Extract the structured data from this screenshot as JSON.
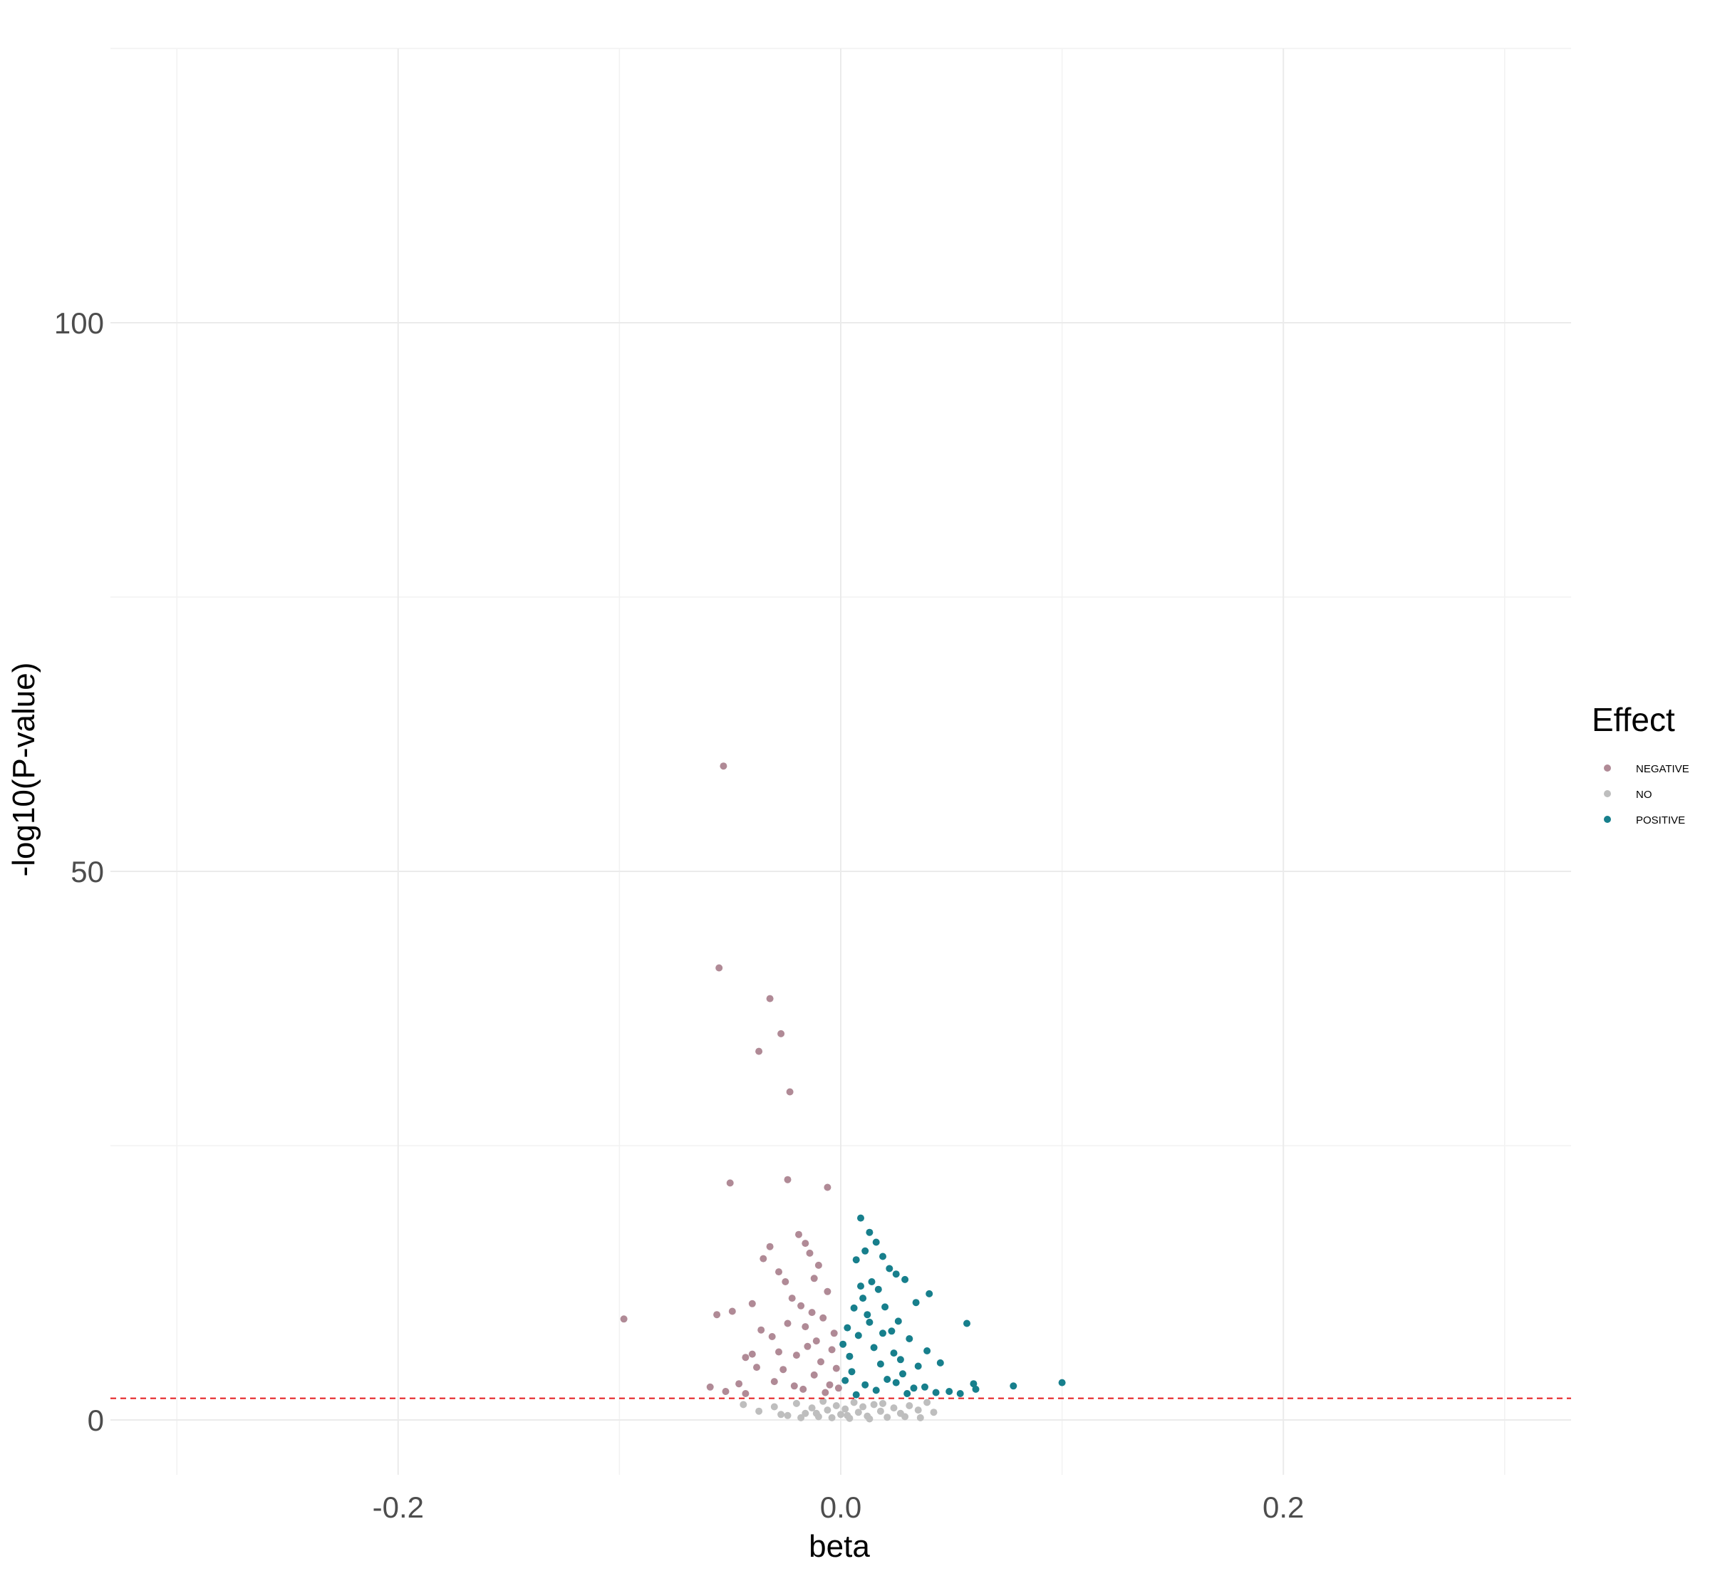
{
  "chart_data": {
    "type": "scatter",
    "title": "",
    "xlabel": "beta",
    "ylabel": "-log10(P-value)",
    "xlim": [
      -0.33,
      0.33
    ],
    "ylim": [
      -5,
      125
    ],
    "x_major_ticks": [
      -0.2,
      0.0,
      0.2
    ],
    "x_tick_labels": [
      "-0.2",
      "0.0",
      "0.2"
    ],
    "x_minor_ticks": [
      -0.3,
      -0.1,
      0.1,
      0.3
    ],
    "y_major_ticks": [
      0,
      50,
      100
    ],
    "y_tick_labels": [
      "0",
      "50",
      "100"
    ],
    "y_minor_ticks": [
      25,
      75,
      125
    ],
    "grid": true,
    "threshold_line": {
      "y": 1.97,
      "style": "dashed",
      "color": "#e41a1c"
    },
    "legend": {
      "title": "Effect",
      "position": "right",
      "entries": [
        {
          "label": "NEGATIVE",
          "color": "#b08a96"
        },
        {
          "label": "NO",
          "color": "#bebebe"
        },
        {
          "label": "POSITIVE",
          "color": "#177f8c"
        }
      ]
    },
    "series": [
      {
        "name": "NO",
        "color": "#bebebe",
        "points": [
          [
            -0.037,
            0.8
          ],
          [
            -0.03,
            1.2
          ],
          [
            -0.024,
            0.4
          ],
          [
            -0.02,
            1.5
          ],
          [
            -0.016,
            0.6
          ],
          [
            -0.013,
            1.1
          ],
          [
            -0.01,
            0.3
          ],
          [
            -0.008,
            1.7
          ],
          [
            -0.006,
            0.9
          ],
          [
            -0.004,
            0.2
          ],
          [
            -0.002,
            1.3
          ],
          [
            0.0,
            0.5
          ],
          [
            0.002,
            1.0
          ],
          [
            0.004,
            0.15
          ],
          [
            0.006,
            1.6
          ],
          [
            0.008,
            0.7
          ],
          [
            0.01,
            1.2
          ],
          [
            0.012,
            0.35
          ],
          [
            0.015,
            1.4
          ],
          [
            0.018,
            0.8
          ],
          [
            0.021,
            0.25
          ],
          [
            0.024,
            1.1
          ],
          [
            0.027,
            0.6
          ],
          [
            0.031,
            1.3
          ],
          [
            0.035,
            0.9
          ],
          [
            0.039,
            1.6
          ],
          [
            -0.027,
            0.5
          ],
          [
            -0.018,
            0.2
          ],
          [
            -0.011,
            0.6
          ],
          [
            0.003,
            0.4
          ],
          [
            0.013,
            0.1
          ],
          [
            0.019,
            1.5
          ],
          [
            0.029,
            0.3
          ],
          [
            0.042,
            0.7
          ],
          [
            -0.044,
            1.4
          ],
          [
            0.036,
            0.2
          ]
        ]
      },
      {
        "name": "NEGATIVE",
        "color": "#b08a96",
        "points": [
          [
            -0.053,
            59.6
          ],
          [
            -0.055,
            41.2
          ],
          [
            -0.032,
            38.4
          ],
          [
            -0.027,
            35.2
          ],
          [
            -0.037,
            33.6
          ],
          [
            -0.023,
            29.9
          ],
          [
            -0.05,
            21.6
          ],
          [
            -0.024,
            21.9
          ],
          [
            -0.006,
            21.2
          ],
          [
            -0.098,
            9.2
          ],
          [
            -0.056,
            9.6
          ],
          [
            -0.049,
            9.9
          ],
          [
            -0.019,
            16.9
          ],
          [
            -0.016,
            16.1
          ],
          [
            -0.014,
            15.2
          ],
          [
            -0.032,
            15.8
          ],
          [
            -0.035,
            14.7
          ],
          [
            -0.028,
            13.5
          ],
          [
            -0.025,
            12.6
          ],
          [
            -0.04,
            10.6
          ],
          [
            -0.04,
            6.0
          ],
          [
            -0.043,
            5.7
          ],
          [
            -0.059,
            3.0
          ],
          [
            -0.052,
            2.6
          ],
          [
            -0.046,
            3.3
          ],
          [
            -0.043,
            2.4
          ],
          [
            -0.038,
            4.8
          ],
          [
            -0.031,
            7.6
          ],
          [
            -0.036,
            8.2
          ],
          [
            -0.022,
            11.1
          ],
          [
            -0.018,
            10.4
          ],
          [
            -0.012,
            12.9
          ],
          [
            -0.01,
            14.1
          ],
          [
            -0.008,
            9.3
          ],
          [
            -0.006,
            11.7
          ],
          [
            -0.003,
            7.9
          ],
          [
            -0.015,
            6.7
          ],
          [
            -0.02,
            5.9
          ],
          [
            -0.026,
            4.6
          ],
          [
            -0.03,
            3.5
          ],
          [
            -0.012,
            4.1
          ],
          [
            -0.005,
            3.2
          ],
          [
            -0.017,
            2.8
          ],
          [
            -0.009,
            5.3
          ],
          [
            -0.004,
            6.4
          ],
          [
            -0.024,
            8.8
          ],
          [
            -0.013,
            9.8
          ],
          [
            -0.002,
            4.7
          ],
          [
            -0.007,
            2.5
          ],
          [
            -0.021,
            3.1
          ],
          [
            -0.011,
            7.2
          ],
          [
            -0.016,
            8.5
          ],
          [
            -0.028,
            6.2
          ],
          [
            -0.001,
            2.9
          ]
        ]
      },
      {
        "name": "POSITIVE",
        "color": "#177f8c",
        "points": [
          [
            0.009,
            18.4
          ],
          [
            0.013,
            17.1
          ],
          [
            0.016,
            16.2
          ],
          [
            0.011,
            15.4
          ],
          [
            0.019,
            14.9
          ],
          [
            0.007,
            14.6
          ],
          [
            0.022,
            13.8
          ],
          [
            0.025,
            13.3
          ],
          [
            0.029,
            12.8
          ],
          [
            0.04,
            11.5
          ],
          [
            0.034,
            10.7
          ],
          [
            0.057,
            8.8
          ],
          [
            0.1,
            3.4
          ],
          [
            0.078,
            3.1
          ],
          [
            0.061,
            2.8
          ],
          [
            0.06,
            3.3
          ],
          [
            0.054,
            2.4
          ],
          [
            0.049,
            2.6
          ],
          [
            0.043,
            2.5
          ],
          [
            0.038,
            3.0
          ],
          [
            0.033,
            2.9
          ],
          [
            0.028,
            4.2
          ],
          [
            0.024,
            6.1
          ],
          [
            0.031,
            7.4
          ],
          [
            0.026,
            9.0
          ],
          [
            0.02,
            10.3
          ],
          [
            0.017,
            11.9
          ],
          [
            0.014,
            12.6
          ],
          [
            0.012,
            9.6
          ],
          [
            0.01,
            11.1
          ],
          [
            0.008,
            7.7
          ],
          [
            0.006,
            10.2
          ],
          [
            0.004,
            5.8
          ],
          [
            0.003,
            8.4
          ],
          [
            0.002,
            3.6
          ],
          [
            0.005,
            4.4
          ],
          [
            0.015,
            6.6
          ],
          [
            0.018,
            5.1
          ],
          [
            0.021,
            3.7
          ],
          [
            0.023,
            8.1
          ],
          [
            0.027,
            5.5
          ],
          [
            0.035,
            4.9
          ],
          [
            0.039,
            6.3
          ],
          [
            0.045,
            5.2
          ],
          [
            0.001,
            6.9
          ],
          [
            0.011,
            3.2
          ],
          [
            0.016,
            2.7
          ],
          [
            0.007,
            2.3
          ],
          [
            0.013,
            8.9
          ],
          [
            0.009,
            12.2
          ],
          [
            0.03,
            2.4
          ],
          [
            0.019,
            7.9
          ],
          [
            0.025,
            3.4
          ]
        ]
      }
    ]
  }
}
